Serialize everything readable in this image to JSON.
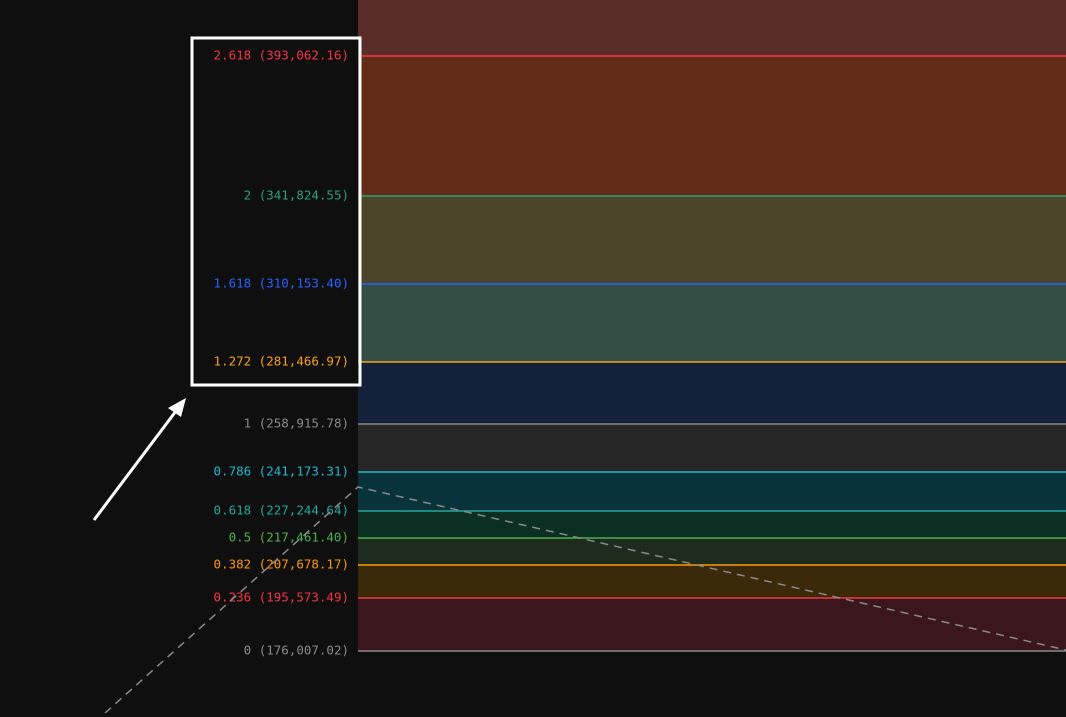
{
  "fib_levels": [
    {
      "label": "2.618 (393,062.16)",
      "color": "#f23645"
    },
    {
      "label": "2 (341,824.55)",
      "color": "#2e9e7a"
    },
    {
      "label": "1.618 (310,153.40)",
      "color": "#2962ff"
    },
    {
      "label": "1.272 (281,466.97)",
      "color": "#f7a21b"
    },
    {
      "label": "1 (258,915.78)",
      "color": "#8a8a8a"
    },
    {
      "label": "0.786 (241,173.31)",
      "color": "#22b8cf"
    },
    {
      "label": "0.618 (227,244.64)",
      "color": "#26a69a"
    },
    {
      "label": "0.5 (217,461.40)",
      "color": "#4caf50"
    },
    {
      "label": "0.382 (207,678.17)",
      "color": "#ff9800"
    },
    {
      "label": "0.236 (195,573.49)",
      "color": "#f23645"
    },
    {
      "label": "0 (176,007.02)",
      "color": "#8a8a8a"
    }
  ]
}
